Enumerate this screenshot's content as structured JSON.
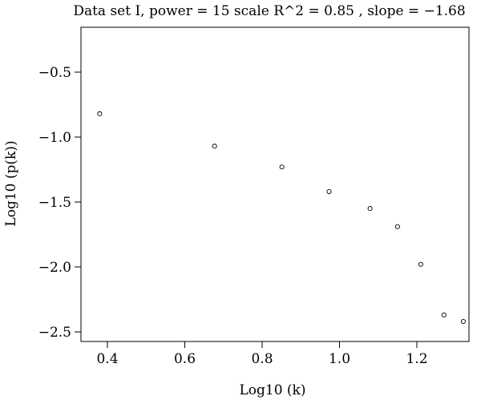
{
  "chart_data": {
    "type": "scatter",
    "title": "Data set I, power = 15 scale R^2 = 0.85 , slope = −1.68",
    "xlabel": "Log10 (k)",
    "ylabel": "Log10 (p(k))",
    "xlim": [
      0.35,
      1.34
    ],
    "ylim": [
      -2.55,
      -0.25
    ],
    "x_ticks": [
      0.4,
      0.6,
      0.8,
      1.0,
      1.2
    ],
    "x_tick_labels": [
      "0.4",
      "0.6",
      "0.8",
      "1.0",
      "1.2"
    ],
    "y_ticks": [
      -0.5,
      -1.0,
      -1.5,
      -2.0,
      -2.5
    ],
    "y_tick_labels": [
      "−0.5",
      "−1.0",
      "−1.5",
      "−2.0",
      "−2.5"
    ],
    "grid": false,
    "points": [
      {
        "x": 0.38,
        "y": -0.82
      },
      {
        "x": 0.677,
        "y": -1.07
      },
      {
        "x": 0.851,
        "y": -1.23
      },
      {
        "x": 0.973,
        "y": -1.42
      },
      {
        "x": 1.079,
        "y": -1.55
      },
      {
        "x": 1.15,
        "y": -1.69
      },
      {
        "x": 1.21,
        "y": -1.98
      },
      {
        "x": 1.27,
        "y": -2.37
      },
      {
        "x": 1.32,
        "y": -2.42
      }
    ]
  }
}
